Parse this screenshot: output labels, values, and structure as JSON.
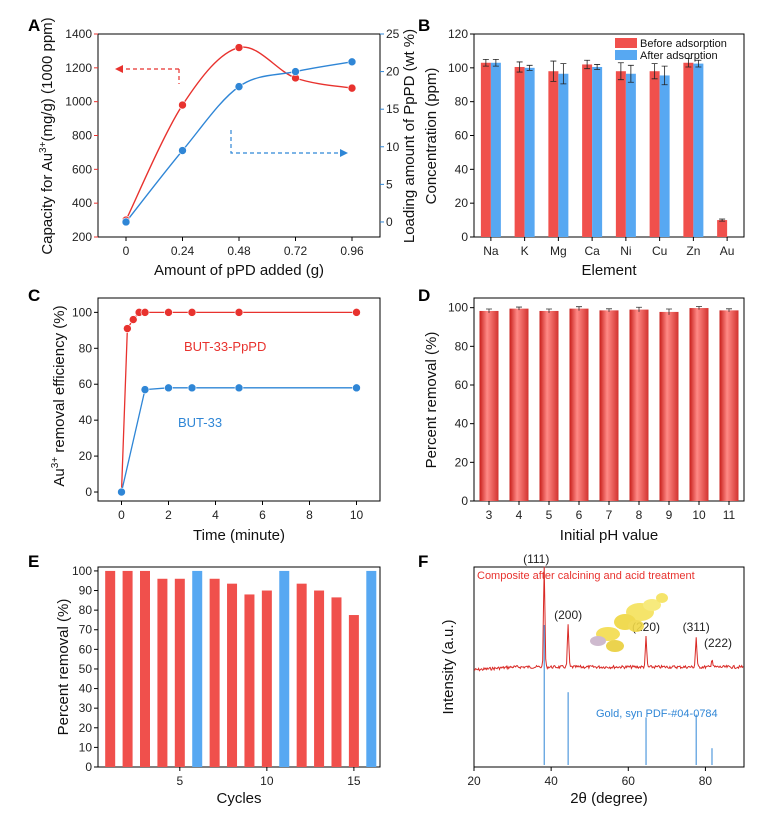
{
  "colors": {
    "red": "#e8322e",
    "blue": "#2f86d6",
    "bar_red": "#f0504c",
    "bar_blue": "#57a8f2"
  },
  "chart_data": [
    {
      "panel": "A",
      "type": "line",
      "xlabel": "Amount of pPD added (g)",
      "x": [
        0,
        0.24,
        0.48,
        0.72,
        0.96
      ],
      "x_ticks": [
        "0",
        "0.24",
        "0.48",
        "0.72",
        "0.96"
      ],
      "xlim": [
        0,
        0.96
      ],
      "series": [
        {
          "name": "Capacity for Au3+",
          "axis": "left",
          "color": "#e8322e",
          "values": [
            300,
            980,
            1320,
            1140,
            1080
          ]
        },
        {
          "name": "Loading amount of PpPD",
          "axis": "right",
          "color": "#2f86d6",
          "values": [
            0,
            9.5,
            18,
            20,
            21.3
          ]
        }
      ],
      "ylabel_left": "Capacity for Au",
      "ylabel_left_sup": "3+",
      "ylabel_left_suffix": "(mg/g) (1000 ppm)",
      "ylim_left": [
        200,
        1400
      ],
      "yticks_left": [
        "200",
        "400",
        "600",
        "800",
        "1000",
        "1200",
        "1400"
      ],
      "ylabel_right": "Loading amount of PpPD (wt %)",
      "ylim_right": [
        -2,
        25
      ],
      "yticks_right": [
        "0",
        "5",
        "10",
        "15",
        "20",
        "25"
      ]
    },
    {
      "panel": "B",
      "type": "bar",
      "xlabel": "Element",
      "ylabel": "Concentration (ppm)",
      "categories": [
        "Na",
        "K",
        "Mg",
        "Ca",
        "Ni",
        "Cu",
        "Zn",
        "Au"
      ],
      "ylim": [
        0,
        120
      ],
      "yticks": [
        "0",
        "20",
        "40",
        "60",
        "80",
        "100",
        "120"
      ],
      "series": [
        {
          "name": "Before adsorption",
          "color": "#f0504c",
          "values": [
            103,
            100.5,
            98,
            102,
            98,
            98,
            103,
            10
          ],
          "errors": [
            2,
            3,
            6,
            2.5,
            5,
            4.5,
            2.5,
            0.6
          ]
        },
        {
          "name": "After adsorption",
          "color": "#57a8f2",
          "values": [
            103,
            100,
            96.5,
            100.5,
            96.5,
            95.5,
            102.5,
            0
          ],
          "errors": [
            2,
            1.5,
            6,
            1.5,
            5,
            5.5,
            2,
            0
          ]
        }
      ],
      "legend_position": "top-right"
    },
    {
      "panel": "C",
      "type": "line",
      "xlabel": "Time (minute)",
      "ylabel_prefix": "Au",
      "ylabel_sup": "3+",
      "ylabel_suffix": " removal efficiency (%)",
      "xlim": [
        -1,
        11
      ],
      "x_ticks": [
        "0",
        "2",
        "4",
        "6",
        "8",
        "10"
      ],
      "ylim": [
        -5,
        108
      ],
      "yticks": [
        "0",
        "20",
        "40",
        "60",
        "80",
        "100"
      ],
      "series": [
        {
          "name": "BUT-33-PpPD",
          "color": "#e8322e",
          "x": [
            0,
            0.25,
            0.5,
            0.75,
            1,
            2,
            3,
            5,
            10
          ],
          "values": [
            0,
            91,
            96,
            100,
            100,
            100,
            100,
            100,
            100
          ]
        },
        {
          "name": "BUT-33",
          "color": "#2f86d6",
          "x": [
            0,
            1,
            2,
            3,
            5,
            10
          ],
          "values": [
            0,
            57,
            58,
            58,
            58,
            58
          ]
        }
      ]
    },
    {
      "panel": "D",
      "type": "bar",
      "xlabel": "Initial pH value",
      "ylabel": "Percent  removal (%)",
      "categories": [
        "3",
        "4",
        "5",
        "6",
        "7",
        "8",
        "9",
        "10",
        "11"
      ],
      "values": [
        98.3,
        99.5,
        98.3,
        99.5,
        98.6,
        99,
        97.8,
        99.8,
        98.6
      ],
      "errors": [
        1,
        0.8,
        1,
        1,
        0.8,
        1.2,
        1.5,
        0.8,
        0.8
      ],
      "ylim": [
        0,
        105
      ],
      "yticks": [
        "0",
        "20",
        "40",
        "60",
        "80",
        "100"
      ]
    },
    {
      "panel": "E",
      "type": "bar",
      "xlabel": "Cycles",
      "ylabel": "Percent removal (%)",
      "categories": [
        "1",
        "2",
        "3",
        "4",
        "5",
        "6",
        "7",
        "8",
        "9",
        "10",
        "11",
        "12",
        "13",
        "14",
        "15",
        "16"
      ],
      "values": [
        100,
        100,
        100,
        96,
        96,
        100,
        96,
        93.5,
        88,
        90,
        100,
        93.5,
        90,
        86.5,
        77.5,
        100
      ],
      "bar_colors": [
        "red",
        "red",
        "red",
        "red",
        "red",
        "blue",
        "red",
        "red",
        "red",
        "red",
        "blue",
        "red",
        "red",
        "red",
        "red",
        "blue"
      ],
      "xlim": [
        0.3,
        16.5
      ],
      "xticks": [
        "5",
        "10",
        "15"
      ],
      "ylim": [
        0,
        102
      ],
      "yticks": [
        "0",
        "10",
        "20",
        "30",
        "40",
        "50",
        "60",
        "70",
        "80",
        "90",
        "100"
      ]
    },
    {
      "panel": "F",
      "type": "line",
      "xlabel": "2θ (degree)",
      "ylabel": "Intensity (a.u.)",
      "title": "Composite after calcining and acid treatment",
      "xlim": [
        20,
        90
      ],
      "xticks": [
        "20",
        "40",
        "60",
        "80"
      ],
      "peaks": [
        {
          "label": "(111)",
          "x": 38.2,
          "height": 1.0
        },
        {
          "label": "(200)",
          "x": 44.4,
          "height": 0.42
        },
        {
          "label": "(220)",
          "x": 64.6,
          "height": 0.3
        },
        {
          "label": "(311)",
          "x": 77.6,
          "height": 0.3
        },
        {
          "label": "(222)",
          "x": 81.7,
          "height": 0.08
        }
      ],
      "reference_name": "Gold, syn  PDF-#04-0784",
      "reference_lines": [
        {
          "x": 38.2,
          "height": 1.0
        },
        {
          "x": 44.4,
          "height": 0.52
        },
        {
          "x": 64.6,
          "height": 0.34
        },
        {
          "x": 77.6,
          "height": 0.36
        },
        {
          "x": 81.7,
          "height": 0.12
        }
      ]
    }
  ],
  "panel_labels": [
    "A",
    "B",
    "C",
    "D",
    "E",
    "F"
  ]
}
